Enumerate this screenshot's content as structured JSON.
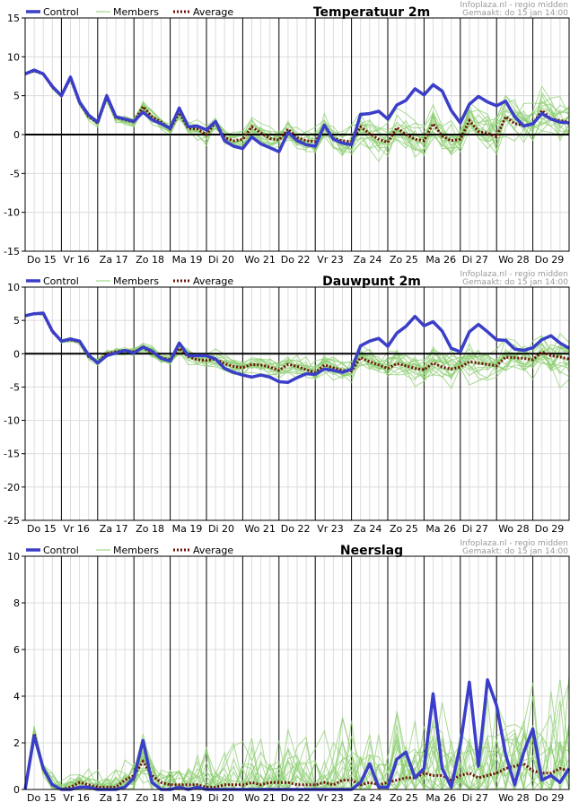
{
  "header": {
    "legend": {
      "control": "Control",
      "members": "Members",
      "average": "Average"
    },
    "credit": "Infoplaza.nl - regio midden",
    "made": "Gemaakt: do 15 jan 14:00"
  },
  "colors": {
    "control": "#3a3ec8",
    "members": "#8ecf72",
    "average": "#6e1208",
    "grid": "#dcdcdc",
    "daysep": "#000000"
  },
  "x_labels": [
    "Do 15",
    "Vr 16",
    "Za 17",
    "Zo 18",
    "Ma 19",
    "Di 20",
    "Wo 21",
    "Do 22",
    "Vr 23",
    "Za 24",
    "Zo 25",
    "Ma 26",
    "Di 27",
    "Wo 28",
    "Do 29"
  ],
  "chart_data": [
    {
      "type": "line",
      "title": "Temperatuur 2m",
      "ylim": [
        -15,
        15
      ],
      "yticks": [
        15,
        10,
        5,
        0,
        -5,
        -10,
        -15
      ],
      "x": [
        0,
        0.25,
        0.5,
        0.75,
        1,
        1.25,
        1.5,
        1.75,
        2,
        2.25,
        2.5,
        2.75,
        3,
        3.25,
        3.5,
        3.75,
        4,
        4.25,
        4.5,
        4.75,
        5,
        5.25,
        5.5,
        5.75,
        6,
        6.25,
        6.5,
        6.75,
        7,
        7.25,
        7.5,
        7.75,
        8,
        8.25,
        8.5,
        8.75,
        9,
        9.25,
        9.5,
        9.75,
        10,
        10.25,
        10.5,
        10.75,
        11,
        11.25,
        11.5,
        11.75,
        12,
        12.25,
        12.5,
        12.75,
        13,
        13.25,
        13.5,
        13.75,
        14,
        14.25,
        14.5,
        14.75,
        15
      ],
      "series": [
        {
          "name": "Control",
          "values": [
            7.8,
            8.3,
            7.8,
            6.2,
            5.0,
            7.4,
            4.2,
            2.5,
            1.6,
            5.0,
            2.3,
            2.0,
            1.7,
            2.9,
            1.9,
            1.4,
            0.8,
            3.4,
            1.0,
            1.1,
            0.6,
            1.7,
            -0.8,
            -1.5,
            -1.8,
            -0.3,
            -1.2,
            -1.7,
            -2.2,
            0.3,
            -0.8,
            -1.3,
            -1.5,
            1.2,
            -0.6,
            -1.1,
            -1.3,
            2.6,
            2.7,
            3.0,
            2.0,
            3.8,
            4.4,
            5.9,
            5.1,
            6.4,
            5.6,
            3.1,
            1.5,
            3.9,
            4.9,
            4.2,
            3.7,
            4.3,
            2.3,
            1.1,
            1.4,
            2.7,
            2.0,
            1.6,
            1.5
          ]
        },
        {
          "name": "Average",
          "values": [
            7.8,
            8.2,
            7.8,
            6.1,
            5.0,
            7.2,
            4.1,
            2.3,
            1.5,
            4.8,
            2.2,
            1.9,
            1.6,
            3.6,
            2.3,
            1.6,
            0.7,
            2.8,
            0.8,
            0.7,
            0.0,
            1.6,
            -0.4,
            -0.8,
            -0.6,
            1.0,
            0.2,
            -0.5,
            -0.7,
            0.7,
            -0.4,
            -0.8,
            -0.9,
            1.0,
            -0.5,
            -0.8,
            -0.9,
            1.0,
            0.1,
            -0.6,
            -1.0,
            0.9,
            0.0,
            -0.6,
            -0.8,
            1.4,
            -0.2,
            -0.8,
            -0.6,
            1.8,
            0.4,
            0.2,
            -0.3,
            2.3,
            1.4,
            1.2,
            1.3,
            3.1,
            2.0,
            1.8,
            1.6
          ]
        }
      ]
    },
    {
      "type": "line",
      "title": "Dauwpunt 2m",
      "ylim": [
        -25,
        10
      ],
      "yticks": [
        10,
        5,
        0,
        -5,
        -10,
        -15,
        -20,
        -25
      ],
      "x": [
        0,
        0.25,
        0.5,
        0.75,
        1,
        1.25,
        1.5,
        1.75,
        2,
        2.25,
        2.5,
        2.75,
        3,
        3.25,
        3.5,
        3.75,
        4,
        4.25,
        4.5,
        4.75,
        5,
        5.25,
        5.5,
        5.75,
        6,
        6.25,
        6.5,
        6.75,
        7,
        7.25,
        7.5,
        7.75,
        8,
        8.25,
        8.5,
        8.75,
        9,
        9.25,
        9.5,
        9.75,
        10,
        10.25,
        10.5,
        10.75,
        11,
        11.25,
        11.5,
        11.75,
        12,
        12.25,
        12.5,
        12.75,
        13,
        13.25,
        13.5,
        13.75,
        14,
        14.25,
        14.5,
        14.75,
        15
      ],
      "series": [
        {
          "name": "Control",
          "values": [
            5.7,
            6.0,
            6.1,
            3.4,
            1.9,
            2.2,
            1.9,
            -0.2,
            -1.4,
            -0.3,
            0.1,
            0.5,
            0.1,
            1.0,
            0.4,
            -0.7,
            -1.1,
            1.6,
            -0.3,
            -0.3,
            -0.3,
            -0.8,
            -2.2,
            -2.8,
            -3.2,
            -3.5,
            -3.2,
            -3.5,
            -4.2,
            -4.3,
            -3.6,
            -3.0,
            -3.1,
            -2.3,
            -2.5,
            -2.8,
            -2.3,
            1.2,
            1.9,
            2.3,
            1.1,
            3.1,
            4.1,
            5.6,
            4.2,
            4.8,
            3.4,
            0.8,
            0.3,
            3.3,
            4.4,
            3.3,
            2.1,
            2.0,
            0.7,
            0.5,
            0.9,
            2.1,
            2.7,
            1.6,
            0.8
          ]
        },
        {
          "name": "Average",
          "values": [
            5.7,
            6.0,
            6.0,
            3.3,
            1.9,
            2.1,
            1.8,
            -0.4,
            -1.3,
            0.0,
            0.3,
            0.5,
            0.3,
            0.9,
            0.2,
            -0.6,
            -0.9,
            0.8,
            -0.4,
            -0.9,
            -1.0,
            -0.8,
            -1.5,
            -1.9,
            -2.1,
            -1.6,
            -1.7,
            -2.0,
            -2.5,
            -1.6,
            -1.9,
            -2.4,
            -2.8,
            -1.7,
            -2.1,
            -2.5,
            -2.6,
            -0.6,
            -1.2,
            -1.7,
            -2.2,
            -1.5,
            -1.8,
            -2.2,
            -2.4,
            -1.4,
            -2.0,
            -2.3,
            -2.0,
            -1.2,
            -1.4,
            -1.6,
            -1.8,
            -0.5,
            -0.6,
            -0.7,
            -0.9,
            0.3,
            -0.3,
            -0.5,
            -0.8
          ]
        }
      ]
    },
    {
      "type": "line",
      "title": "Neerslag",
      "ylim": [
        0,
        10
      ],
      "yticks": [
        10,
        8,
        6,
        4,
        2,
        0
      ],
      "x": [
        0,
        0.25,
        0.5,
        0.75,
        1,
        1.25,
        1.5,
        1.75,
        2,
        2.25,
        2.5,
        2.75,
        3,
        3.25,
        3.5,
        3.75,
        4,
        4.25,
        4.5,
        4.75,
        5,
        5.25,
        5.5,
        5.75,
        6,
        6.25,
        6.5,
        6.75,
        7,
        7.25,
        7.5,
        7.75,
        8,
        8.25,
        8.5,
        8.75,
        9,
        9.25,
        9.5,
        9.75,
        10,
        10.25,
        10.5,
        10.75,
        11,
        11.25,
        11.5,
        11.75,
        12,
        12.25,
        12.5,
        12.75,
        13,
        13.25,
        13.5,
        13.75,
        14,
        14.25,
        14.5,
        14.75,
        15
      ],
      "series": [
        {
          "name": "Control",
          "values": [
            0,
            2.3,
            0.9,
            0.2,
            0,
            0,
            0.1,
            0.1,
            0,
            0,
            0,
            0.1,
            0.5,
            2.1,
            0.3,
            0,
            0,
            0.1,
            0,
            0.1,
            0,
            0,
            0,
            0,
            0,
            0,
            0,
            0,
            0,
            0,
            0,
            0,
            0,
            0,
            0,
            0,
            0,
            0.3,
            1.1,
            0.1,
            0.1,
            1.3,
            1.6,
            0.5,
            0.9,
            4.1,
            0.9,
            0.1,
            1.9,
            4.6,
            1.0,
            4.7,
            3.6,
            1.5,
            0.2,
            1.6,
            2.6,
            0.4,
            0.6,
            0.3,
            0.9
          ]
        },
        {
          "name": "Average",
          "values": [
            0,
            2.4,
            0.9,
            0.2,
            0,
            0.1,
            0.3,
            0.2,
            0.1,
            0.1,
            0.1,
            0.4,
            0.6,
            1.2,
            0.6,
            0.3,
            0.2,
            0.2,
            0.2,
            0.2,
            0.1,
            0.1,
            0.2,
            0.2,
            0.2,
            0.3,
            0.2,
            0.3,
            0.3,
            0.3,
            0.2,
            0.2,
            0.2,
            0.3,
            0.2,
            0.4,
            0.4,
            0.2,
            0.3,
            0.2,
            0.3,
            0.4,
            0.5,
            0.5,
            0.7,
            0.6,
            0.6,
            0.4,
            0.6,
            0.7,
            0.5,
            0.6,
            0.7,
            0.9,
            1.0,
            1.1,
            0.8,
            0.7,
            0.7,
            0.9,
            0.8
          ]
        }
      ]
    }
  ]
}
